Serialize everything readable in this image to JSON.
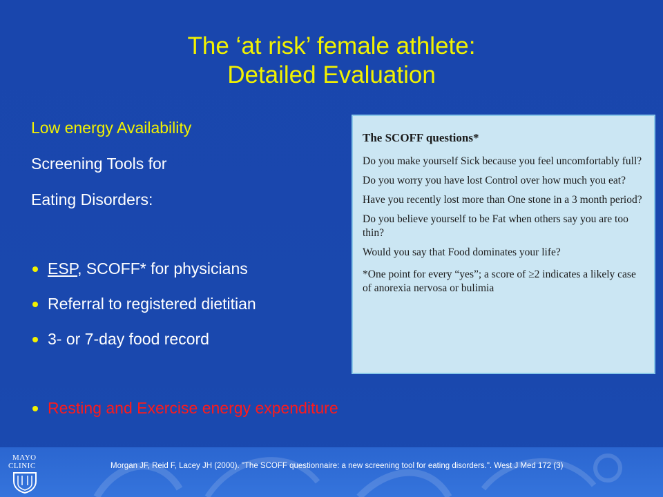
{
  "title": {
    "line1": "The ‘at risk’ female athlete:",
    "line2": "Detailed Evaluation"
  },
  "left": {
    "heading": "Low energy Availability",
    "line1": "Screening Tools for",
    "line2": "Eating Disorders:",
    "bullets": [
      {
        "underlined": "ESP",
        "rest": ", SCOFF* for physicians"
      },
      {
        "text": "Referral to registered dietitian"
      },
      {
        "text": "3- or 7-day food record"
      },
      {
        "text": "Resting and Exercise energy expenditure"
      }
    ]
  },
  "scoff": {
    "title": "The SCOFF questions*",
    "questions": [
      "Do you make yourself Sick because you feel uncomfortably full?",
      "Do you worry you have lost Control over how much you eat?",
      "Have you recently lost more than One stone in a 3 month period?",
      "Do you believe yourself to be Fat when others say you are too thin?",
      "Would you say that Food dominates your life?"
    ],
    "note": "*One point for every “yes”; a score of ≥2 indicates a likely case of anorexia nervosa or bulimia"
  },
  "footer": {
    "citation": "Morgan JF, Reid F, Lacey JH (2000). \"The SCOFF questionnaire: a new screening tool for eating disorders.\". West J Med 172 (3)",
    "logo_line1": "MAYO",
    "logo_line2": "CLINIC"
  },
  "colors": {
    "background": "#1a46ad",
    "title": "#f2f200",
    "highlight": "#ff1a1a",
    "panel": "#cbe6f3"
  }
}
